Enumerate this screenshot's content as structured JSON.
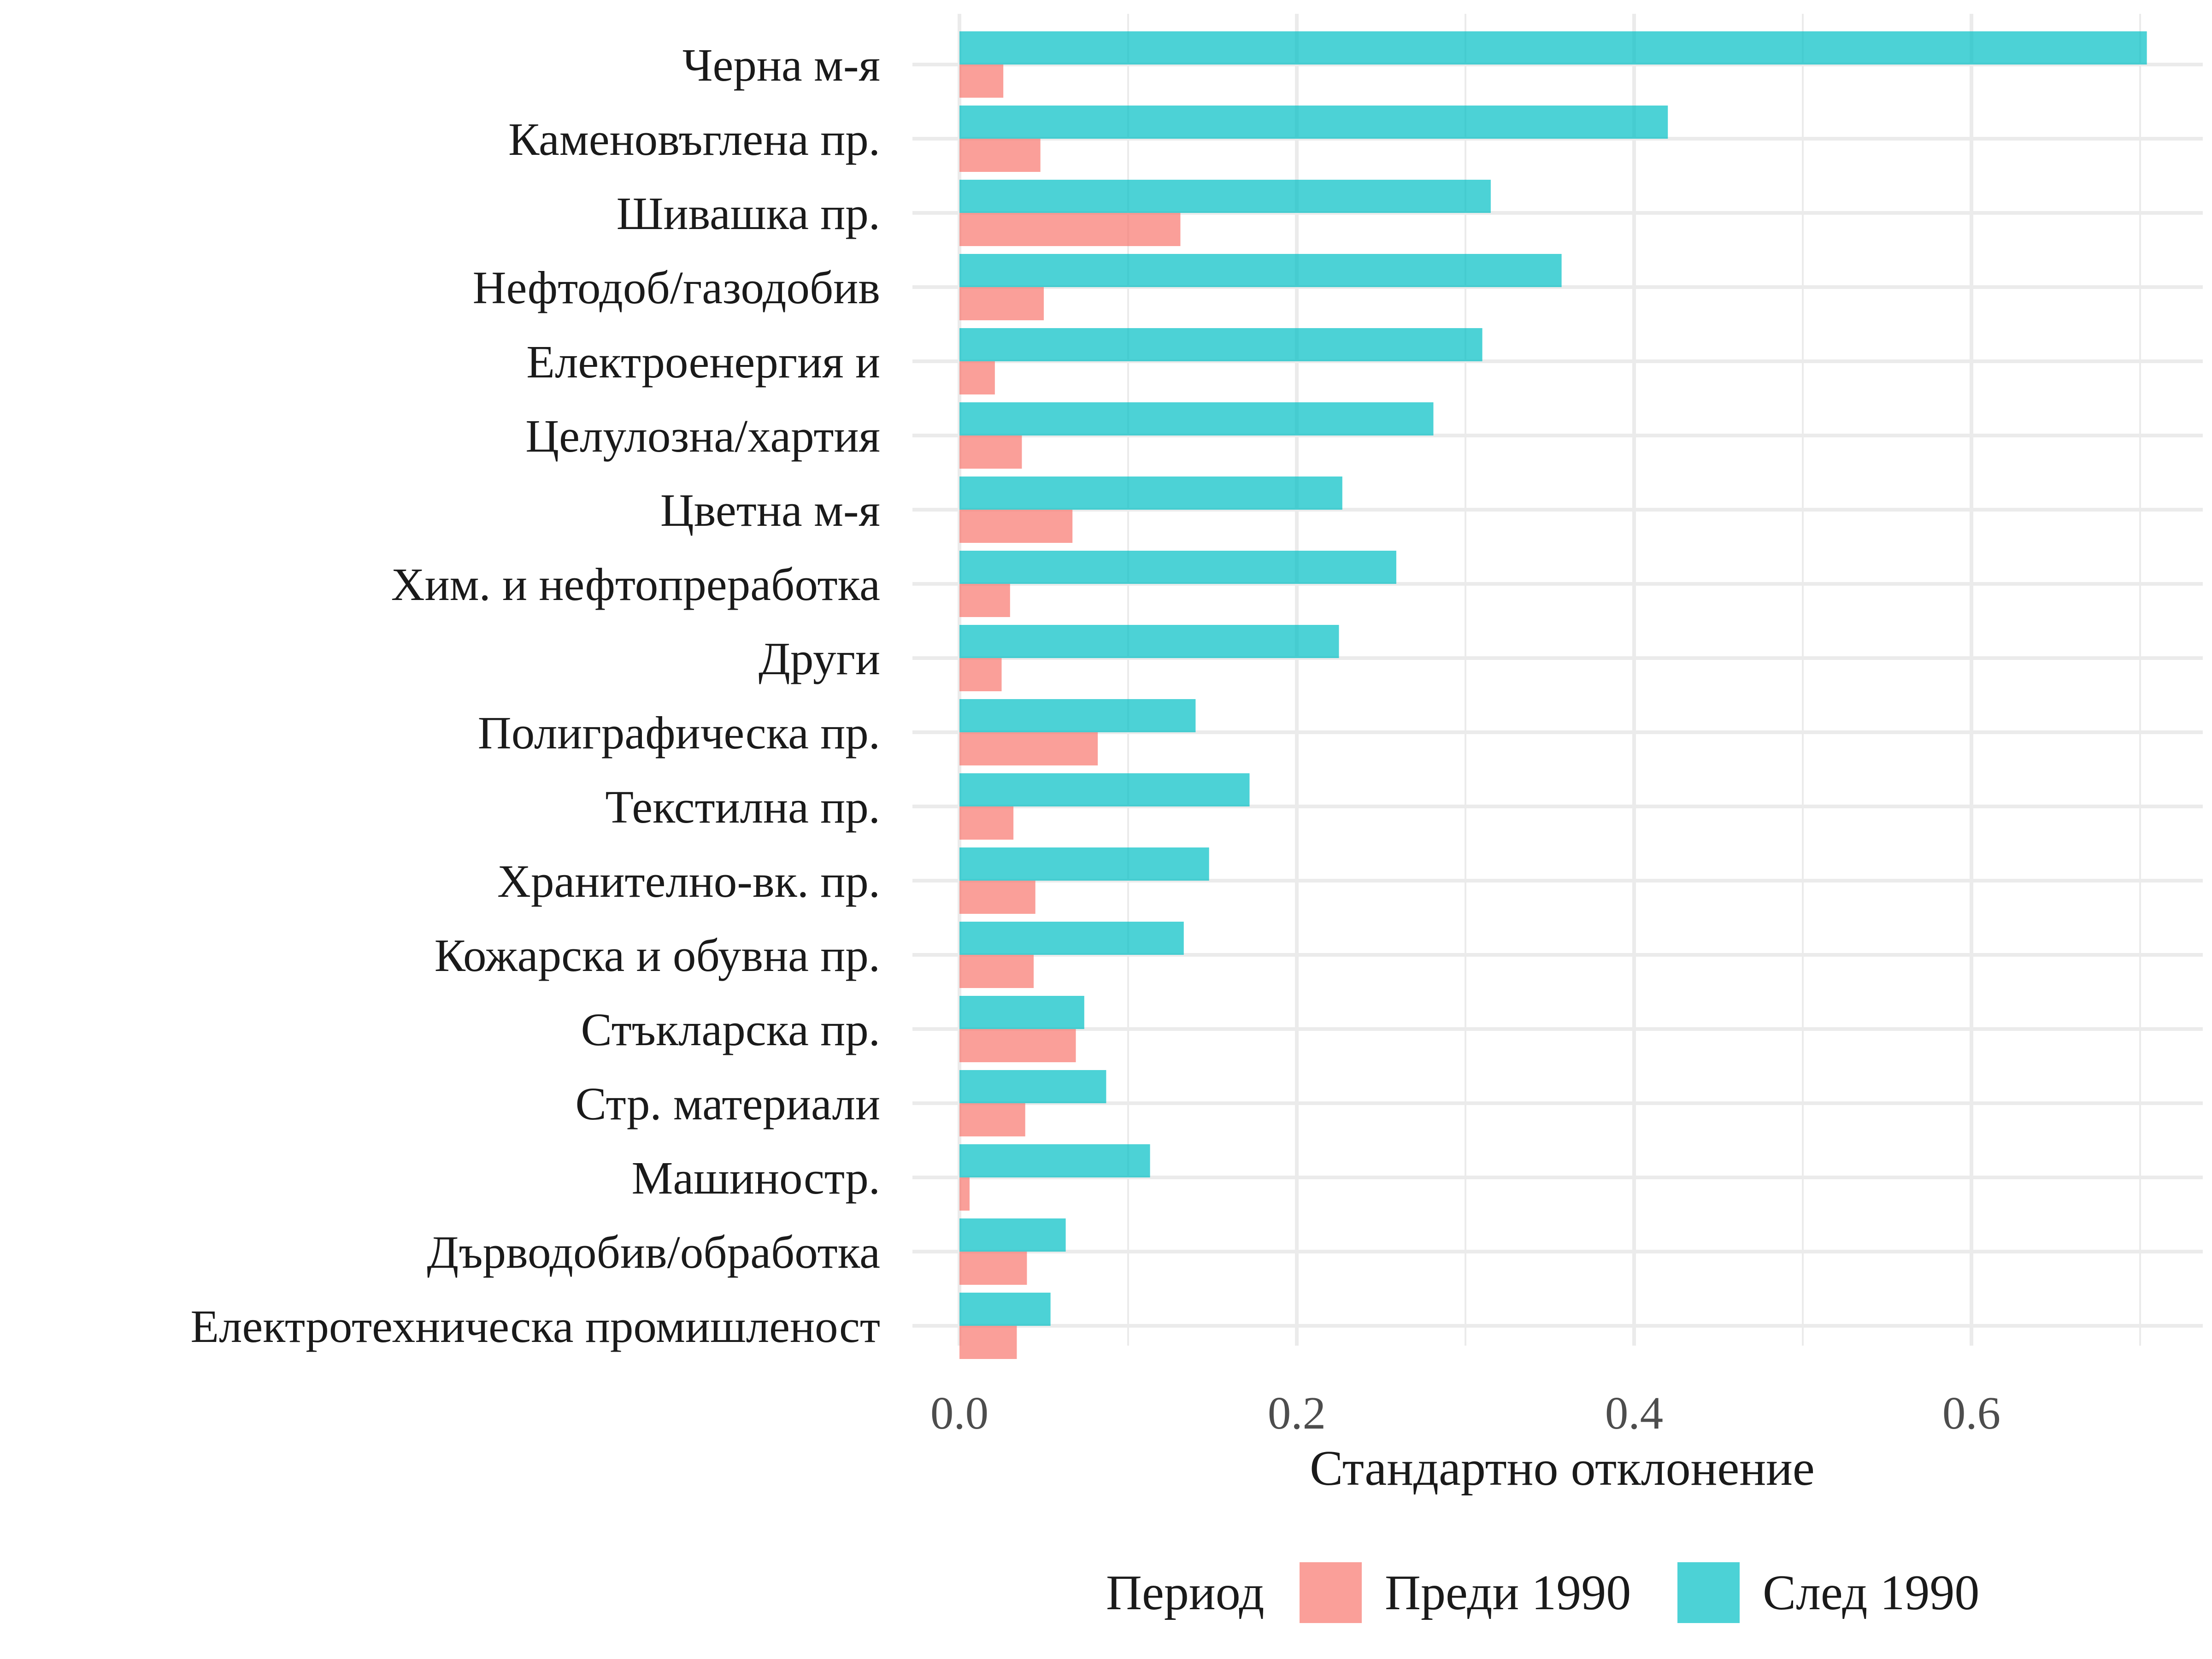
{
  "chart_data": {
    "type": "bar",
    "orientation": "horizontal",
    "categories": [
      "Черна м-я",
      "Каменовъглена пр.",
      "Шивашка пр.",
      "Нефтодоб/газодобив",
      "Електроенергия и ",
      "Целулозна/хартия",
      "Цветна м-я",
      "Хим. и нефтопреработка",
      "Други",
      "Полиграфическа пр.",
      "Текстилна пр.",
      "Хранително-вк. пр.",
      "Кожарска и обувна пр.",
      "Стъкларска пр.",
      "Стр. материали",
      "Машиностр.",
      "Дърводобив/обработка",
      "Електротехническа промишленост"
    ],
    "series": [
      {
        "name": "Преди 1990",
        "color": "#F8766D",
        "values": [
          0.026,
          0.048,
          0.131,
          0.05,
          0.021,
          0.037,
          0.067,
          0.03,
          0.025,
          0.082,
          0.032,
          0.045,
          0.044,
          0.069,
          0.039,
          0.006,
          0.04,
          0.034
        ]
      },
      {
        "name": "След 1990",
        "color": "#00BFC4",
        "values": [
          0.704,
          0.42,
          0.315,
          0.357,
          0.31,
          0.281,
          0.227,
          0.259,
          0.225,
          0.14,
          0.172,
          0.148,
          0.133,
          0.074,
          0.087,
          0.113,
          0.063,
          0.054
        ]
      }
    ],
    "xlabel": "Стандартно отклонение",
    "ylabel": "",
    "xlim": [
      0,
      0.704
    ],
    "x_ticks": [
      0.0,
      0.2,
      0.4,
      0.6
    ],
    "x_tick_labels": [
      "0.0",
      "0.2",
      "0.4",
      "0.6"
    ],
    "grid": true,
    "legend": {
      "title": "Период",
      "placement": "bottom",
      "entries": [
        "Преди 1990",
        "След 1990"
      ]
    }
  }
}
